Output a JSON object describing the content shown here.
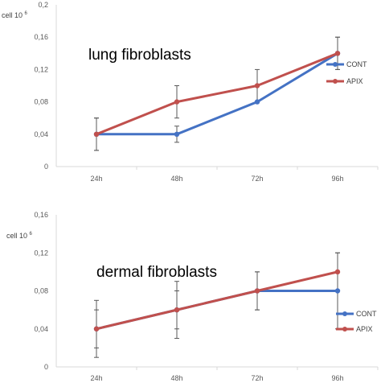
{
  "chart_data": [
    {
      "type": "line",
      "title": "lung fibroblasts",
      "ylabel": "cell 10",
      "ylabel_sup": "6",
      "categories": [
        "24h",
        "48h",
        "72h",
        "96h"
      ],
      "ylim": [
        0,
        0.2
      ],
      "yticks": [
        "0",
        "0,04",
        "0,08",
        "0,12",
        "0,16",
        "0,2"
      ],
      "grid": false,
      "legend": "right",
      "series": [
        {
          "name": "CONT",
          "color": "#4472C4",
          "values": [
            0.04,
            0.04,
            0.08,
            0.14
          ],
          "err": [
            0.02,
            0.01,
            0.0,
            0.02
          ]
        },
        {
          "name": "APIX",
          "color": "#C0504D",
          "values": [
            0.04,
            0.08,
            0.1,
            0.14
          ],
          "err": [
            0.02,
            0.02,
            0.02,
            0.02
          ]
        }
      ]
    },
    {
      "type": "line",
      "title": "dermal fibroblasts",
      "ylabel": "cell 10",
      "ylabel_sup": "6",
      "categories": [
        "24h",
        "48h",
        "72h",
        "96h"
      ],
      "ylim": [
        0,
        0.16
      ],
      "yticks": [
        "0",
        "0,04",
        "0,08",
        "0,12",
        "0,16"
      ],
      "grid": false,
      "legend": "bottom-right",
      "series": [
        {
          "name": "CONT",
          "color": "#4472C4",
          "values": [
            0.04,
            0.06,
            0.08,
            0.08
          ],
          "err": [
            0.03,
            0.02,
            0.02,
            0.04
          ]
        },
        {
          "name": "APIX",
          "color": "#C0504D",
          "values": [
            0.04,
            0.06,
            0.08,
            0.1
          ],
          "err": [
            0.02,
            0.03,
            0.02,
            0.02
          ]
        }
      ]
    }
  ]
}
